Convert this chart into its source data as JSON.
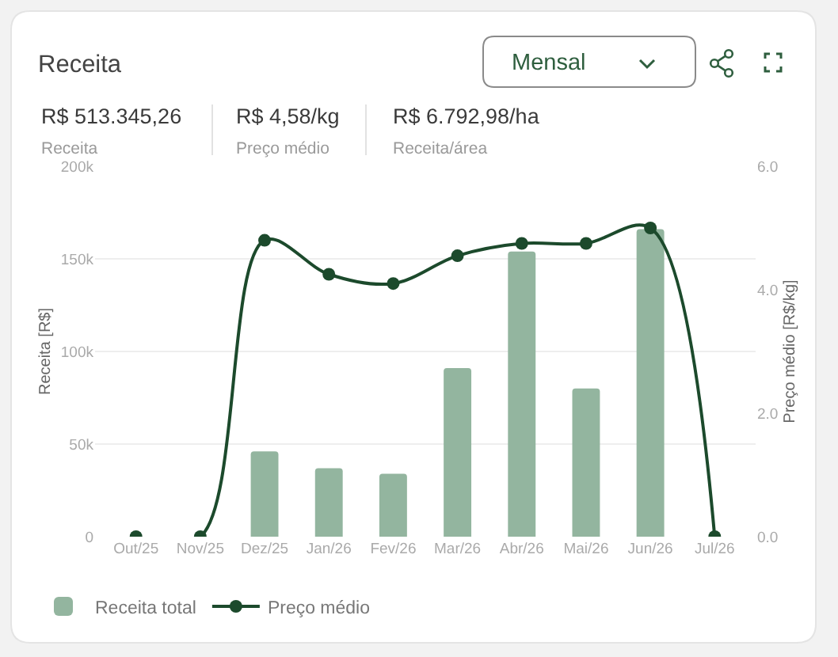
{
  "chart_data": {
    "type": "bar",
    "title": "Receita",
    "annotations": [
      "R$ 513.345,26",
      "Receita",
      "R$ 4,58/kg",
      "Preço médio",
      "R$ 6.792,98/ha",
      "Receita/área",
      "Mensal"
    ],
    "categories": [
      "Out/25",
      "Nov/25",
      "Dez/25",
      "Jan/26",
      "Fev/26",
      "Mar/26",
      "Abr/26",
      "Mai/26",
      "Jun/26",
      "Jul/26"
    ],
    "series": [
      {
        "name": "Receita total",
        "color": "#93b59f",
        "values": [
          null,
          null,
          46000,
          37000,
          34000,
          91000,
          154000,
          80000,
          166000,
          null
        ]
      },
      {
        "name": "Preço médio",
        "type": "line",
        "axis": "y2",
        "color": "#1c4a2c",
        "values": [
          0,
          0,
          4.8,
          4.25,
          4.1,
          4.55,
          4.75,
          4.75,
          5.0,
          0
        ]
      }
    ],
    "ylabel": "Receita [R$]",
    "y2label": "Preço médio [R$/kg]",
    "ylim": [
      0,
      200000
    ],
    "yticks": [
      0,
      {
        "value": 50000,
        "label": "50k"
      },
      {
        "value": 100000,
        "label": "100k"
      },
      {
        "value": 150000,
        "label": "150k"
      },
      {
        "value": 200000,
        "label": "200k"
      }
    ],
    "y2lim": [
      0,
      6
    ],
    "y2ticks": [
      {
        "value": 0,
        "label": "0.0"
      },
      {
        "value": 2,
        "label": "2.0"
      },
      {
        "value": 4,
        "label": "4.0"
      },
      {
        "value": 6,
        "label": "6.0"
      }
    ],
    "marker": "circle",
    "grid": "y",
    "legend": "bottom left"
  }
}
